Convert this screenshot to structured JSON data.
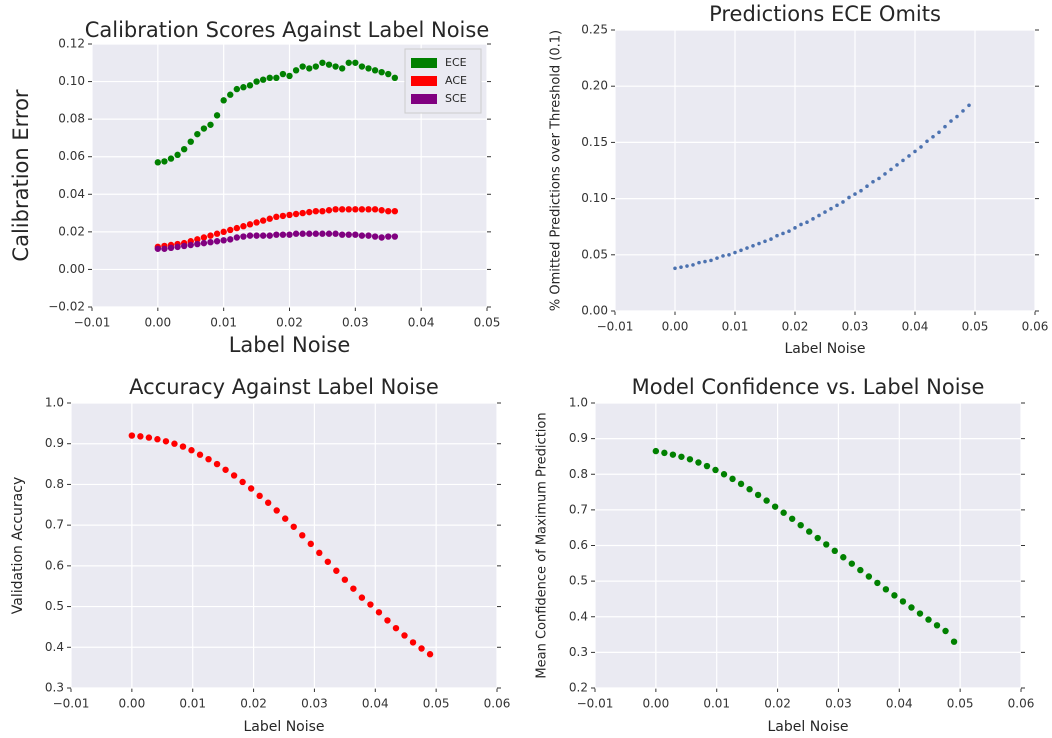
{
  "chart_data": [
    {
      "type": "scatter",
      "title": "Calibration Scores Against Label Noise",
      "xlabel": "Label Noise",
      "ylabel": "Calibration Error",
      "x": [
        0,
        0.001,
        0.002,
        0.003,
        0.004,
        0.005,
        0.006,
        0.007,
        0.008,
        0.009,
        0.01,
        0.011,
        0.012,
        0.013,
        0.014,
        0.015,
        0.016,
        0.017,
        0.018,
        0.019,
        0.02,
        0.021,
        0.022,
        0.023,
        0.024,
        0.025,
        0.026,
        0.027,
        0.028,
        0.029,
        0.03,
        0.031,
        0.032,
        0.033,
        0.034,
        0.035,
        0.036
      ],
      "series": [
        {
          "name": "ECE",
          "color": "#008000",
          "values": [
            0.057,
            0.0575,
            0.059,
            0.061,
            0.064,
            0.068,
            0.072,
            0.075,
            0.077,
            0.082,
            0.09,
            0.093,
            0.096,
            0.097,
            0.098,
            0.1,
            0.101,
            0.102,
            0.102,
            0.104,
            0.103,
            0.106,
            0.108,
            0.107,
            0.108,
            0.11,
            0.109,
            0.108,
            0.107,
            0.11,
            0.11,
            0.108,
            0.107,
            0.106,
            0.105,
            0.104,
            0.102
          ]
        },
        {
          "name": "ACE",
          "color": "#ff0000",
          "values": [
            0.012,
            0.0125,
            0.013,
            0.0135,
            0.014,
            0.015,
            0.016,
            0.017,
            0.018,
            0.019,
            0.02,
            0.021,
            0.022,
            0.023,
            0.024,
            0.025,
            0.026,
            0.027,
            0.028,
            0.0285,
            0.029,
            0.0295,
            0.03,
            0.0305,
            0.031,
            0.031,
            0.0315,
            0.032,
            0.032,
            0.032,
            0.032,
            0.032,
            0.032,
            0.032,
            0.0315,
            0.031,
            0.031
          ]
        },
        {
          "name": "SCE",
          "color": "#800080",
          "values": [
            0.011,
            0.011,
            0.0115,
            0.012,
            0.0125,
            0.013,
            0.0135,
            0.014,
            0.0145,
            0.015,
            0.0155,
            0.016,
            0.017,
            0.0175,
            0.018,
            0.018,
            0.018,
            0.018,
            0.0185,
            0.0185,
            0.0185,
            0.019,
            0.019,
            0.019,
            0.019,
            0.019,
            0.019,
            0.019,
            0.0185,
            0.0185,
            0.0185,
            0.018,
            0.018,
            0.0175,
            0.017,
            0.0175,
            0.0175
          ]
        }
      ],
      "xlim": [
        -0.01,
        0.05
      ],
      "ylim": [
        -0.02,
        0.12
      ],
      "xticks": [
        {
          "value": -0.01,
          "label": "−0.01"
        },
        {
          "value": 0,
          "label": "0.00"
        },
        {
          "value": 0.01,
          "label": "0.01"
        },
        {
          "value": 0.02,
          "label": "0.02"
        },
        {
          "value": 0.03,
          "label": "0.03"
        },
        {
          "value": 0.04,
          "label": "0.04"
        },
        {
          "value": 0.05,
          "label": "0.05"
        }
      ],
      "yticks": [
        {
          "value": -0.02,
          "label": "−0.02"
        },
        {
          "value": 0,
          "label": "0.00"
        },
        {
          "value": 0.02,
          "label": "0.02"
        },
        {
          "value": 0.04,
          "label": "0.04"
        },
        {
          "value": 0.06,
          "label": "0.06"
        },
        {
          "value": 0.08,
          "label": "0.08"
        },
        {
          "value": 0.1,
          "label": "0.10"
        },
        {
          "value": 0.12,
          "label": "0.12"
        }
      ],
      "grid": true,
      "legend": "upper right"
    },
    {
      "type": "scatter",
      "title": "Predictions ECE Omits",
      "xlabel": "Label Noise",
      "ylabel": "% Omitted Predictions over Threshold (0.1)",
      "x": [
        0,
        0.001,
        0.002,
        0.003,
        0.004,
        0.005,
        0.006,
        0.007,
        0.008,
        0.009,
        0.01,
        0.011,
        0.012,
        0.013,
        0.014,
        0.015,
        0.016,
        0.017,
        0.018,
        0.019,
        0.02,
        0.021,
        0.022,
        0.023,
        0.024,
        0.025,
        0.026,
        0.027,
        0.028,
        0.029,
        0.03,
        0.031,
        0.032,
        0.033,
        0.034,
        0.035,
        0.036,
        0.037,
        0.038,
        0.039,
        0.04,
        0.041,
        0.042,
        0.043,
        0.044,
        0.045,
        0.046,
        0.047,
        0.048,
        0.049
      ],
      "series": [
        {
          "color": "#4c72b0",
          "values": [
            0.038,
            0.039,
            0.04,
            0.041,
            0.043,
            0.044,
            0.045,
            0.047,
            0.049,
            0.05,
            0.052,
            0.054,
            0.056,
            0.058,
            0.06,
            0.062,
            0.064,
            0.067,
            0.069,
            0.071,
            0.074,
            0.077,
            0.079,
            0.082,
            0.085,
            0.088,
            0.091,
            0.094,
            0.097,
            0.101,
            0.104,
            0.107,
            0.111,
            0.115,
            0.118,
            0.122,
            0.126,
            0.13,
            0.134,
            0.138,
            0.142,
            0.146,
            0.151,
            0.155,
            0.159,
            0.164,
            0.169,
            0.173,
            0.178,
            0.183
          ]
        }
      ],
      "xlim": [
        -0.01,
        0.06
      ],
      "ylim": [
        0,
        0.25
      ],
      "xticks": [
        {
          "value": -0.01,
          "label": "−0.01"
        },
        {
          "value": 0,
          "label": "0.00"
        },
        {
          "value": 0.01,
          "label": "0.01"
        },
        {
          "value": 0.02,
          "label": "0.02"
        },
        {
          "value": 0.03,
          "label": "0.03"
        },
        {
          "value": 0.04,
          "label": "0.04"
        },
        {
          "value": 0.05,
          "label": "0.05"
        },
        {
          "value": 0.06,
          "label": "0.06"
        }
      ],
      "yticks": [
        {
          "value": 0,
          "label": "0.00"
        },
        {
          "value": 0.05,
          "label": "0.05"
        },
        {
          "value": 0.1,
          "label": "0.10"
        },
        {
          "value": 0.15,
          "label": "0.15"
        },
        {
          "value": 0.2,
          "label": "0.20"
        },
        {
          "value": 0.25,
          "label": "0.25"
        }
      ],
      "grid": true
    },
    {
      "type": "scatter",
      "title": "Accuracy Against Label Noise",
      "xlabel": "Label Noise",
      "ylabel": "Validation Accuracy",
      "x": [
        0,
        0.0014,
        0.0028,
        0.0042,
        0.0056,
        0.007,
        0.0084,
        0.0098,
        0.0112,
        0.0126,
        0.014,
        0.0154,
        0.0168,
        0.0182,
        0.0196,
        0.021,
        0.0224,
        0.0238,
        0.0252,
        0.0266,
        0.028,
        0.0294,
        0.0308,
        0.0322,
        0.0336,
        0.035,
        0.0364,
        0.0378,
        0.0392,
        0.0406,
        0.042,
        0.0434,
        0.0448,
        0.0462,
        0.0476,
        0.049
      ],
      "series": [
        {
          "color": "#ff0000",
          "values": [
            0.92,
            0.918,
            0.915,
            0.911,
            0.906,
            0.9,
            0.893,
            0.884,
            0.873,
            0.862,
            0.85,
            0.836,
            0.822,
            0.806,
            0.79,
            0.772,
            0.755,
            0.736,
            0.716,
            0.696,
            0.675,
            0.654,
            0.632,
            0.61,
            0.588,
            0.566,
            0.544,
            0.522,
            0.505,
            0.486,
            0.466,
            0.447,
            0.429,
            0.412,
            0.397,
            0.383
          ]
        }
      ],
      "xlim": [
        -0.01,
        0.06
      ],
      "ylim": [
        0.3,
        1.0
      ],
      "xticks": [
        {
          "value": -0.01,
          "label": "−0.01"
        },
        {
          "value": 0,
          "label": "0.00"
        },
        {
          "value": 0.01,
          "label": "0.01"
        },
        {
          "value": 0.02,
          "label": "0.02"
        },
        {
          "value": 0.03,
          "label": "0.03"
        },
        {
          "value": 0.04,
          "label": "0.04"
        },
        {
          "value": 0.05,
          "label": "0.05"
        },
        {
          "value": 0.06,
          "label": "0.06"
        }
      ],
      "yticks": [
        {
          "value": 0.3,
          "label": "0.3"
        },
        {
          "value": 0.4,
          "label": "0.4"
        },
        {
          "value": 0.5,
          "label": "0.5"
        },
        {
          "value": 0.6,
          "label": "0.6"
        },
        {
          "value": 0.7,
          "label": "0.7"
        },
        {
          "value": 0.8,
          "label": "0.8"
        },
        {
          "value": 0.9,
          "label": "0.9"
        },
        {
          "value": 1.0,
          "label": "1.0"
        }
      ],
      "grid": true
    },
    {
      "type": "scatter",
      "title": "Model Confidence vs. Label Noise",
      "xlabel": "Label Noise",
      "ylabel": "Mean Confidence of Maximum Prediction",
      "x": [
        0,
        0.0014,
        0.0028,
        0.0042,
        0.0056,
        0.007,
        0.0084,
        0.0098,
        0.0112,
        0.0126,
        0.014,
        0.0154,
        0.0168,
        0.0182,
        0.0196,
        0.021,
        0.0224,
        0.0238,
        0.0252,
        0.0266,
        0.028,
        0.0294,
        0.0308,
        0.0322,
        0.0336,
        0.035,
        0.0364,
        0.0378,
        0.0392,
        0.0406,
        0.042,
        0.0434,
        0.0448,
        0.0462,
        0.0476,
        0.049
      ],
      "series": [
        {
          "color": "#008000",
          "values": [
            0.865,
            0.86,
            0.855,
            0.849,
            0.842,
            0.833,
            0.823,
            0.812,
            0.8,
            0.787,
            0.773,
            0.758,
            0.742,
            0.726,
            0.709,
            0.692,
            0.675,
            0.657,
            0.639,
            0.621,
            0.603,
            0.585,
            0.567,
            0.549,
            0.531,
            0.513,
            0.495,
            0.477,
            0.46,
            0.443,
            0.426,
            0.409,
            0.392,
            0.376,
            0.36,
            0.33
          ]
        }
      ],
      "xlim": [
        -0.01,
        0.06
      ],
      "ylim": [
        0.2,
        1.0
      ],
      "xticks": [
        {
          "value": -0.01,
          "label": "−0.01"
        },
        {
          "value": 0,
          "label": "0.00"
        },
        {
          "value": 0.01,
          "label": "0.01"
        },
        {
          "value": 0.02,
          "label": "0.02"
        },
        {
          "value": 0.03,
          "label": "0.03"
        },
        {
          "value": 0.04,
          "label": "0.04"
        },
        {
          "value": 0.05,
          "label": "0.05"
        },
        {
          "value": 0.06,
          "label": "0.06"
        }
      ],
      "yticks": [
        {
          "value": 0.2,
          "label": "0.2"
        },
        {
          "value": 0.3,
          "label": "0.3"
        },
        {
          "value": 0.4,
          "label": "0.4"
        },
        {
          "value": 0.5,
          "label": "0.5"
        },
        {
          "value": 0.6,
          "label": "0.6"
        },
        {
          "value": 0.7,
          "label": "0.7"
        },
        {
          "value": 0.8,
          "label": "0.8"
        },
        {
          "value": 0.9,
          "label": "0.9"
        },
        {
          "value": 1.0,
          "label": "1.0"
        }
      ],
      "grid": true
    }
  ]
}
